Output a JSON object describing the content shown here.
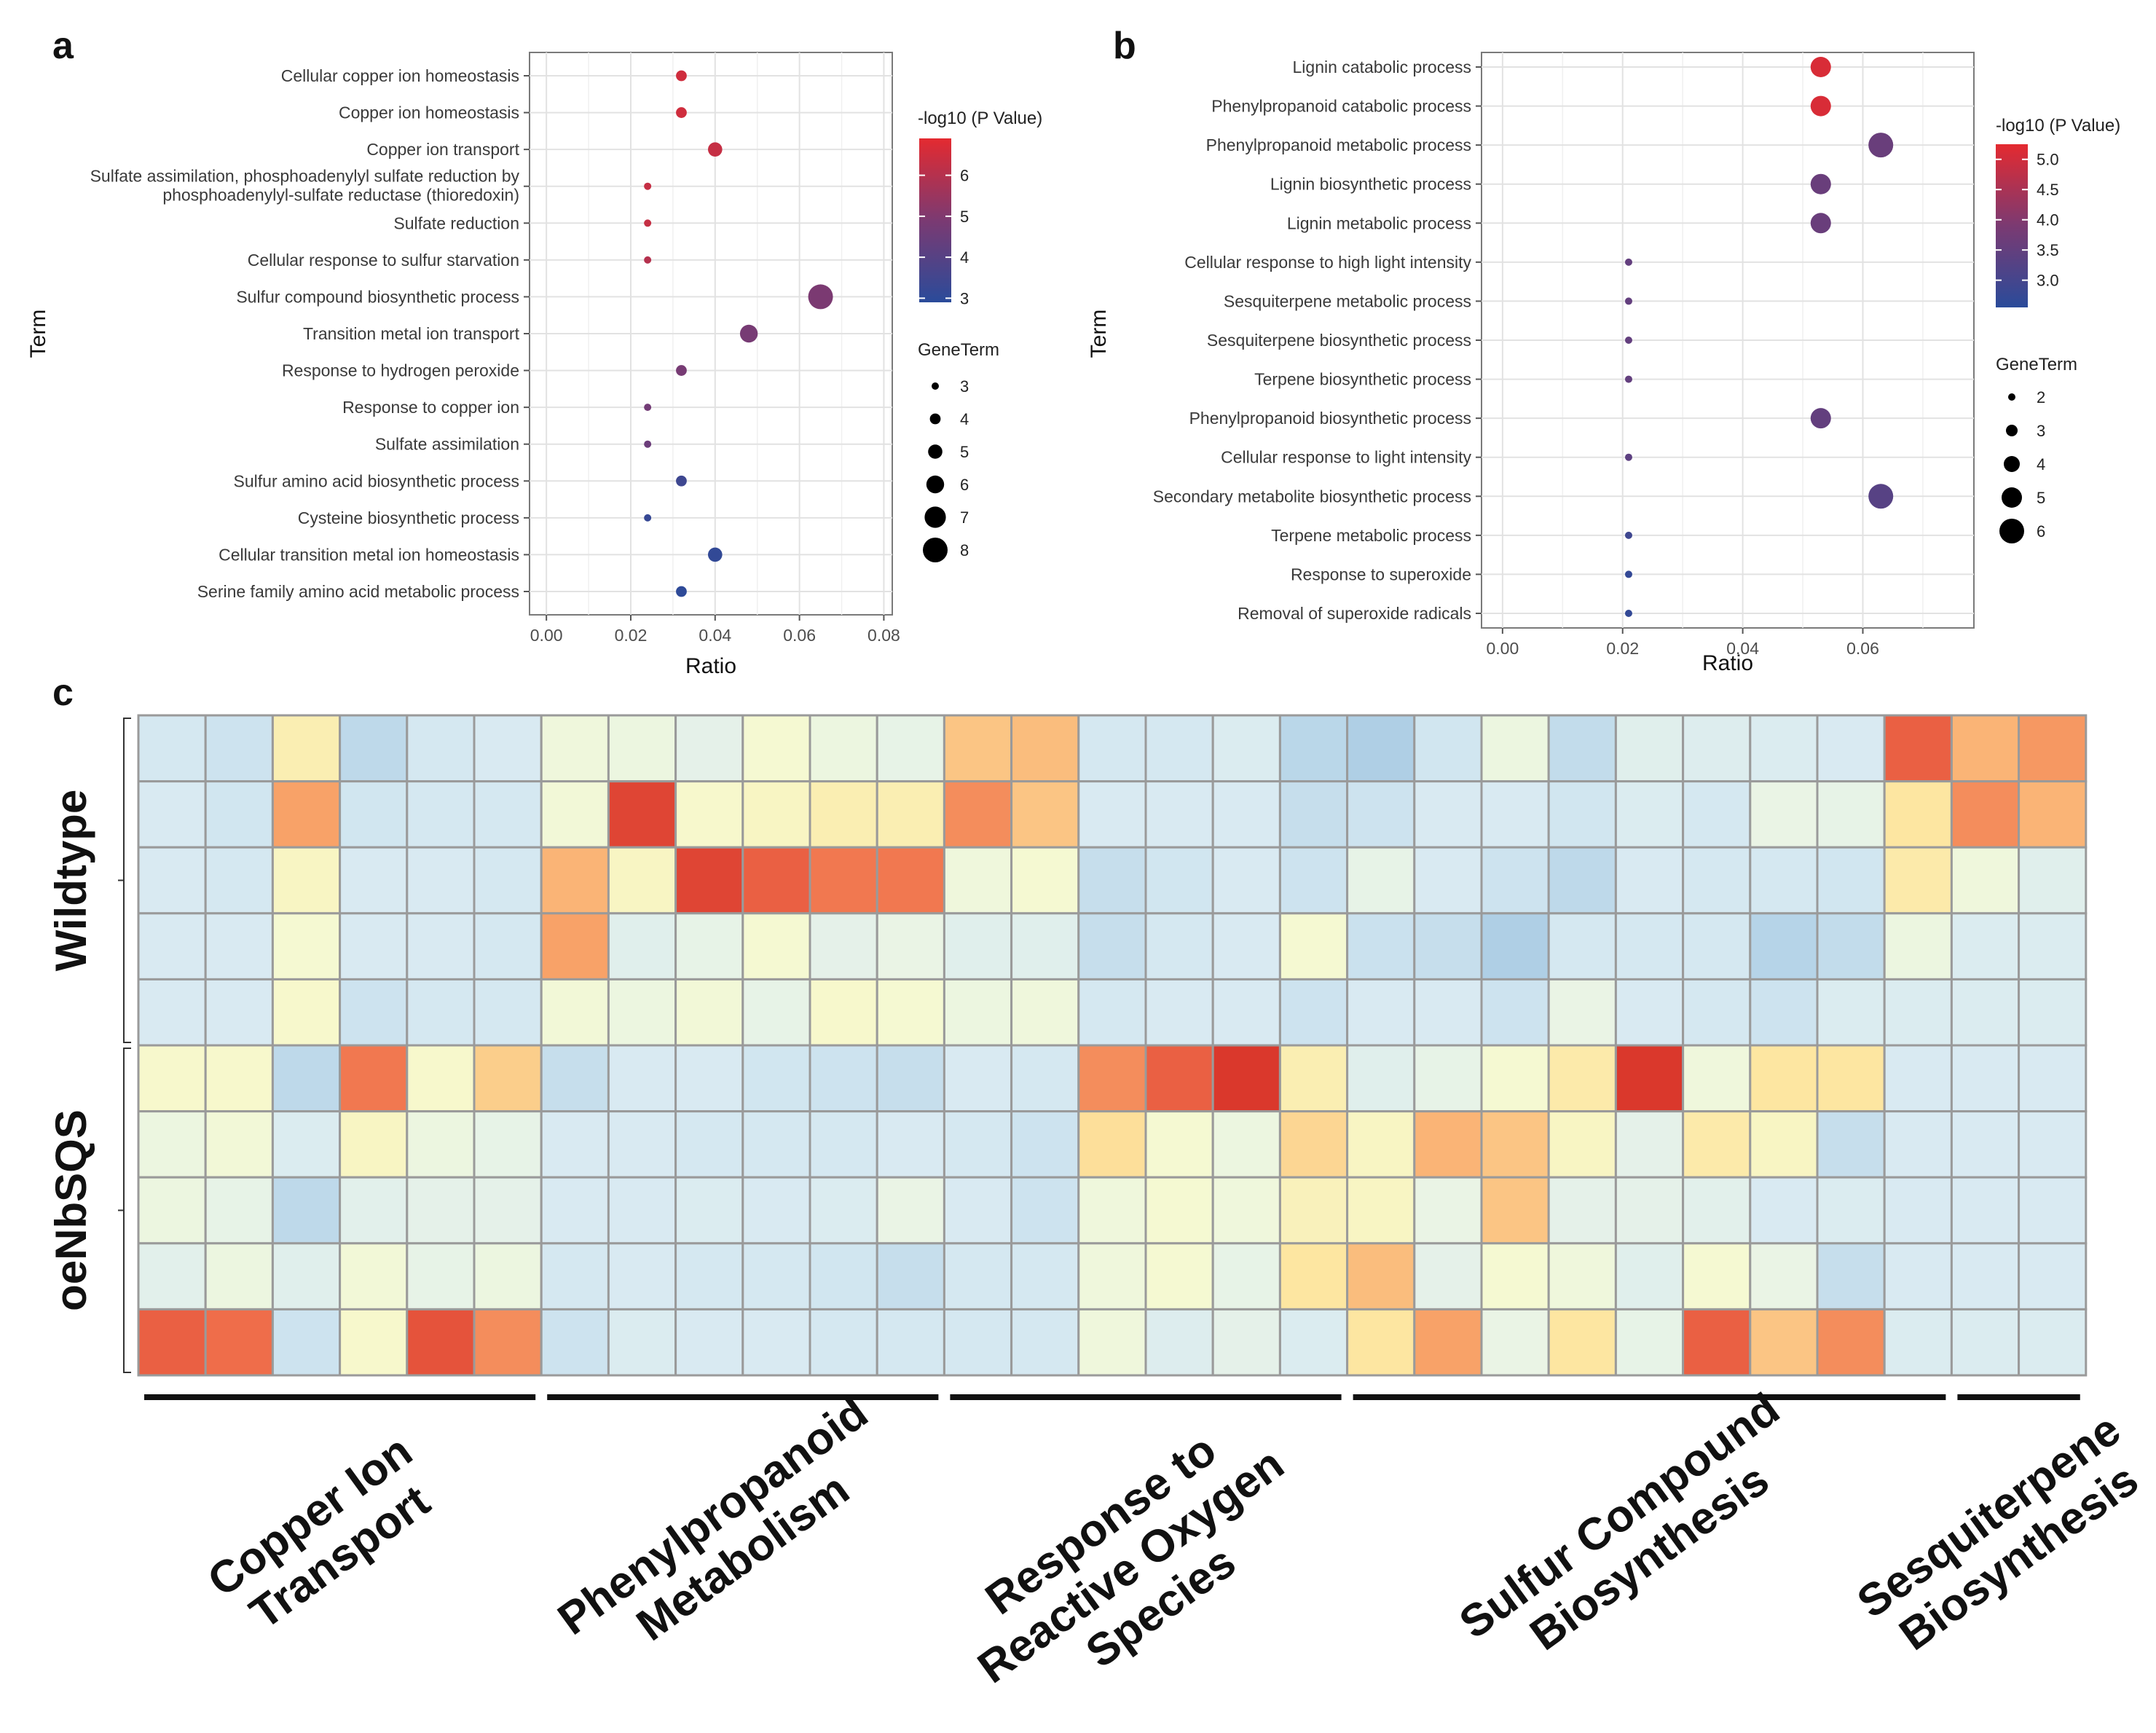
{
  "panels": {
    "a": "a",
    "b": "b",
    "c": "c"
  },
  "chart_data": [
    {
      "panel": "a",
      "type": "scatter",
      "subtype": "bubble",
      "xlabel": "Ratio",
      "ylabel": "Term",
      "xlim": [
        -0.004,
        0.082
      ],
      "xticks": [
        0.0,
        0.02,
        0.04,
        0.06,
        0.08
      ],
      "xtick_labels": [
        "0.00",
        "0.02",
        "0.04",
        "0.06",
        "0.08"
      ],
      "grid": true,
      "legend_position": "right",
      "color_title": "-log10 (P Value)",
      "color_range": [
        2.9,
        6.9
      ],
      "color_ticks": [
        3,
        4,
        5,
        6
      ],
      "size_title": "GeneTerm",
      "size_ticks": [
        3,
        4,
        5,
        6,
        7,
        8
      ],
      "terms": [
        {
          "term": "Cellular copper ion homeostasis",
          "ratio": 0.032,
          "neglogp": 6.5,
          "genes": 4
        },
        {
          "term": "Copper ion homeostasis",
          "ratio": 0.032,
          "neglogp": 6.5,
          "genes": 4
        },
        {
          "term": "Copper ion transport",
          "ratio": 0.04,
          "neglogp": 6.3,
          "genes": 5
        },
        {
          "term": "Sulfate assimilation, phosphoadenylyl sulfate reduction by|phosphoadenylyl-sulfate reductase (thioredoxin)",
          "ratio": 0.024,
          "neglogp": 6.3,
          "genes": 3
        },
        {
          "term": "Sulfate reduction",
          "ratio": 0.024,
          "neglogp": 6.3,
          "genes": 3
        },
        {
          "term": "Cellular response to sulfur starvation",
          "ratio": 0.024,
          "neglogp": 6.0,
          "genes": 3
        },
        {
          "term": "Sulfur compound biosynthetic process",
          "ratio": 0.065,
          "neglogp": 4.9,
          "genes": 8
        },
        {
          "term": "Transition metal ion transport",
          "ratio": 0.048,
          "neglogp": 4.8,
          "genes": 6
        },
        {
          "term": "Response to hydrogen peroxide",
          "ratio": 0.032,
          "neglogp": 4.8,
          "genes": 4
        },
        {
          "term": "Response to copper ion",
          "ratio": 0.024,
          "neglogp": 4.7,
          "genes": 3
        },
        {
          "term": "Sulfate assimilation",
          "ratio": 0.024,
          "neglogp": 4.5,
          "genes": 3
        },
        {
          "term": "Sulfur amino acid biosynthetic process",
          "ratio": 0.032,
          "neglogp": 3.4,
          "genes": 4
        },
        {
          "term": "Cysteine biosynthetic process",
          "ratio": 0.024,
          "neglogp": 3.2,
          "genes": 3
        },
        {
          "term": "Cellular transition metal ion homeostasis",
          "ratio": 0.04,
          "neglogp": 3.1,
          "genes": 5
        },
        {
          "term": "Serine family amino acid metabolic process",
          "ratio": 0.032,
          "neglogp": 3.0,
          "genes": 4
        }
      ]
    },
    {
      "panel": "b",
      "type": "scatter",
      "subtype": "bubble",
      "xlabel": "Ratio",
      "ylabel": "Term",
      "xlim": [
        -0.0035,
        0.0785
      ],
      "xticks": [
        0.0,
        0.02,
        0.04,
        0.06
      ],
      "xtick_labels": [
        "0.00",
        "0.02",
        "0.04",
        "0.06"
      ],
      "grid": true,
      "legend_position": "right",
      "color_title": "-log10 (P Value)",
      "color_range": [
        2.55,
        5.25
      ],
      "color_ticks": [
        3.0,
        3.5,
        4.0,
        4.5,
        5.0
      ],
      "color_tick_labels": [
        "3.0",
        "3.5",
        "4.0",
        "4.5",
        "5.0"
      ],
      "size_title": "GeneTerm",
      "size_ticks": [
        2,
        3,
        4,
        5,
        6
      ],
      "terms": [
        {
          "term": "Lignin catabolic process",
          "ratio": 0.053,
          "neglogp": 5.1,
          "genes": 5
        },
        {
          "term": "Phenylpropanoid catabolic process",
          "ratio": 0.053,
          "neglogp": 5.1,
          "genes": 5
        },
        {
          "term": "Phenylpropanoid metabolic process",
          "ratio": 0.063,
          "neglogp": 3.6,
          "genes": 6
        },
        {
          "term": "Lignin biosynthetic process",
          "ratio": 0.053,
          "neglogp": 3.6,
          "genes": 5
        },
        {
          "term": "Lignin metabolic process",
          "ratio": 0.053,
          "neglogp": 3.6,
          "genes": 5
        },
        {
          "term": "Cellular response to high light intensity",
          "ratio": 0.021,
          "neglogp": 3.5,
          "genes": 2
        },
        {
          "term": "Sesquiterpene metabolic process",
          "ratio": 0.021,
          "neglogp": 3.5,
          "genes": 2
        },
        {
          "term": "Sesquiterpene biosynthetic process",
          "ratio": 0.021,
          "neglogp": 3.5,
          "genes": 2
        },
        {
          "term": "Terpene biosynthetic process",
          "ratio": 0.021,
          "neglogp": 3.5,
          "genes": 2
        },
        {
          "term": "Phenylpropanoid biosynthetic process",
          "ratio": 0.053,
          "neglogp": 3.5,
          "genes": 5
        },
        {
          "term": "Cellular response to light intensity",
          "ratio": 0.021,
          "neglogp": 3.4,
          "genes": 2
        },
        {
          "term": "Secondary metabolite biosynthetic process",
          "ratio": 0.063,
          "neglogp": 3.3,
          "genes": 6
        },
        {
          "term": "Terpene metabolic process",
          "ratio": 0.021,
          "neglogp": 2.9,
          "genes": 2
        },
        {
          "term": "Response to superoxide",
          "ratio": 0.021,
          "neglogp": 2.7,
          "genes": 2
        },
        {
          "term": "Removal of superoxide radicals",
          "ratio": 0.021,
          "neglogp": 2.7,
          "genes": 2
        }
      ]
    },
    {
      "panel": "c",
      "type": "heatmap",
      "value_scale": "z-score (blue = low, red = high)",
      "row_groups": [
        {
          "label": "Wildtype",
          "rows": 5
        },
        {
          "label": "oeNbSQS",
          "rows": 5
        }
      ],
      "column_groups": [
        {
          "label": "Copper Ion|Transport",
          "columns": 6
        },
        {
          "label": "Phenylpropanoid|Metabolism",
          "columns": 6
        },
        {
          "label": "Response to|Reactive Oxygen|Species",
          "columns": 6
        },
        {
          "label": "Sulfur Compound|Biosynthesis",
          "columns": 9
        },
        {
          "label": "Sesquiterpene|Biosynthesis",
          "columns": 2
        }
      ],
      "values": [
        [
          -0.4,
          -0.6,
          1.2,
          -1.0,
          -0.4,
          -0.3,
          0.6,
          0.5,
          0.2,
          0.8,
          0.5,
          0.3,
          1.8,
          1.9,
          -0.4,
          -0.4,
          -0.2,
          -1.1,
          -1.4,
          -0.5,
          0.5,
          -0.9,
          0.0,
          -0.1,
          -0.2,
          -0.3,
          2.8,
          2.0,
          2.3
        ],
        [
          -0.3,
          -0.5,
          2.2,
          -0.5,
          -0.4,
          -0.4,
          0.7,
          3.0,
          0.9,
          1.0,
          1.2,
          1.2,
          2.4,
          1.8,
          -0.3,
          -0.3,
          -0.3,
          -0.8,
          -0.6,
          -0.3,
          -0.3,
          -0.5,
          -0.2,
          -0.4,
          0.4,
          0.3,
          1.4,
          2.4,
          2.0
        ],
        [
          -0.3,
          -0.4,
          1.0,
          -0.3,
          -0.3,
          -0.4,
          2.0,
          1.0,
          3.0,
          2.8,
          2.6,
          2.6,
          0.6,
          0.8,
          -0.8,
          -0.5,
          -0.3,
          -0.6,
          0.3,
          -0.3,
          -0.6,
          -1.0,
          -0.3,
          -0.4,
          -0.4,
          -0.5,
          1.3,
          0.6,
          0.0
        ],
        [
          -0.3,
          -0.3,
          0.8,
          -0.3,
          -0.3,
          -0.4,
          2.2,
          0.0,
          0.3,
          0.8,
          0.2,
          0.4,
          0.0,
          0.0,
          -0.8,
          -0.4,
          -0.3,
          0.8,
          -0.7,
          -0.8,
          -1.4,
          -0.4,
          -0.4,
          -0.4,
          -1.2,
          -0.9,
          0.5,
          -0.2,
          -0.2
        ],
        [
          -0.3,
          -0.3,
          0.9,
          -0.6,
          -0.4,
          -0.4,
          0.7,
          0.5,
          0.7,
          0.3,
          0.9,
          0.8,
          0.5,
          0.6,
          -0.4,
          -0.3,
          -0.3,
          -0.6,
          -0.3,
          -0.3,
          -0.6,
          0.4,
          -0.3,
          -0.4,
          -0.6,
          -0.2,
          -0.2,
          -0.2,
          -0.2
        ]
      ],
      "values_part2": [
        [
          0.9,
          0.9,
          -1.0,
          2.6,
          0.9,
          1.7,
          -0.8,
          -0.3,
          -0.3,
          -0.5,
          -0.6,
          -0.8,
          -0.3,
          -0.4,
          2.4,
          2.8,
          3.1,
          1.2,
          0.0,
          0.3,
          0.8,
          1.3,
          3.1,
          0.6,
          1.4,
          1.4,
          -0.3,
          -0.3,
          -0.3
        ],
        [
          0.5,
          0.7,
          -0.2,
          1.0,
          0.5,
          0.3,
          -0.3,
          -0.3,
          -0.4,
          -0.4,
          -0.4,
          -0.3,
          -0.4,
          -0.6,
          1.5,
          0.8,
          0.5,
          1.6,
          1.0,
          2.0,
          1.8,
          1.0,
          0.2,
          1.3,
          1.0,
          -0.8,
          -0.3,
          -0.3,
          -0.3
        ],
        [
          0.5,
          0.3,
          -1.0,
          0.1,
          0.2,
          0.2,
          -0.3,
          -0.3,
          -0.2,
          -0.3,
          -0.2,
          0.4,
          -0.3,
          -0.6,
          0.6,
          0.8,
          0.6,
          1.1,
          1.0,
          0.4,
          1.8,
          0.2,
          0.2,
          0.1,
          -0.3,
          -0.2,
          -0.3,
          -0.3,
          -0.3
        ],
        [
          0.1,
          0.5,
          0.0,
          0.7,
          0.3,
          0.5,
          -0.4,
          -0.3,
          -0.4,
          -0.4,
          -0.5,
          -0.8,
          -0.4,
          -0.4,
          0.6,
          0.8,
          0.3,
          1.4,
          1.9,
          0.2,
          0.8,
          0.6,
          0.0,
          0.8,
          0.4,
          -0.8,
          -0.3,
          -0.3,
          -0.3
        ],
        [
          2.8,
          2.7,
          -0.6,
          0.9,
          2.9,
          2.4,
          -0.6,
          -0.2,
          -0.3,
          -0.3,
          -0.4,
          -0.4,
          -0.4,
          -0.4,
          0.6,
          -0.1,
          0.2,
          -0.2,
          1.4,
          2.2,
          0.4,
          1.4,
          0.3,
          2.8,
          1.8,
          2.4,
          -0.2,
          -0.2,
          -0.2
        ]
      ]
    }
  ]
}
